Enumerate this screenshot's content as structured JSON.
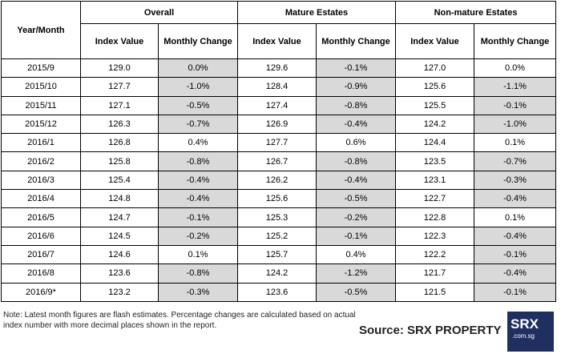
{
  "table": {
    "headers": [
      "Year/Month",
      "Overall",
      "Mature Estates",
      "Non-mature Estates"
    ],
    "subheaders": [
      "Index Value",
      "Monthly Change",
      "Index Value",
      "Monthly Change",
      "Index Value",
      "Monthly Change"
    ],
    "rows": [
      [
        "2015/9",
        "129.0",
        "0.0%",
        "129.6",
        "-0.1%",
        "127.0",
        "0.0%"
      ],
      [
        "2015/10",
        "127.7",
        "-1.0%",
        "128.4",
        "-0.9%",
        "125.6",
        "-1.1%"
      ],
      [
        "2015/11",
        "127.1",
        "-0.5%",
        "127.4",
        "-0.8%",
        "125.5",
        "-0.1%"
      ],
      [
        "2015/12",
        "126.3",
        "-0.7%",
        "126.9",
        "-0.4%",
        "124.2",
        "-1.0%"
      ],
      [
        "2016/1",
        "126.8",
        "0.4%",
        "127.7",
        "0.6%",
        "124.4",
        "0.1%"
      ],
      [
        "2016/2",
        "125.8",
        "-0.8%",
        "126.7",
        "-0.8%",
        "123.5",
        "-0.7%"
      ],
      [
        "2016/3",
        "125.4",
        "-0.4%",
        "126.2",
        "-0.4%",
        "123.1",
        "-0.3%"
      ],
      [
        "2016/4",
        "124.8",
        "-0.4%",
        "125.6",
        "-0.5%",
        "122.7",
        "-0.4%"
      ],
      [
        "2016/5",
        "124.7",
        "-0.1%",
        "125.3",
        "-0.2%",
        "122.8",
        "0.1%"
      ],
      [
        "2016/6",
        "124.5",
        "-0.2%",
        "125.2",
        "-0.1%",
        "122.3",
        "-0.4%"
      ],
      [
        "2016/7",
        "124.6",
        "0.1%",
        "125.7",
        "0.4%",
        "122.2",
        "-0.1%"
      ],
      [
        "2016/8",
        "123.6",
        "-0.8%",
        "124.2",
        "-1.2%",
        "121.7",
        "-0.4%"
      ],
      [
        "2016/9*",
        "123.2",
        "-0.3%",
        "123.6",
        "-0.5%",
        "121.5",
        "-0.1%"
      ]
    ]
  },
  "note": "Note: Latest month figures are flash estimates. Percentage changes are calculated based on actual index number with more decimal places shown in the report.",
  "source": "Source:  SRX PROPERTY",
  "logo": {
    "name": "SRX",
    "domain": ".com.sg"
  }
}
